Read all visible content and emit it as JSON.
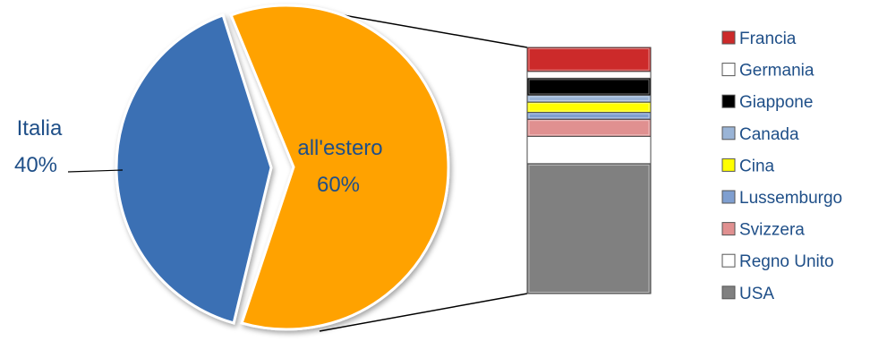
{
  "chart_data": [
    {
      "type": "pie",
      "slices": [
        {
          "label": "Italia",
          "value": 40,
          "value_label": "40%",
          "color": "#3a6fb4"
        },
        {
          "label": "all'estero",
          "value": 60,
          "value_label": "60%",
          "color": "#ffa200"
        }
      ],
      "label_colors": {
        "Italia": "#1f4f88",
        "all'estero": "#1f4f88"
      }
    },
    {
      "type": "bar",
      "stacked": true,
      "stack_order": "bottom-to-top",
      "series": [
        {
          "name": "USA",
          "value": 38,
          "color": "#808080"
        },
        {
          "name": "Regno Unito",
          "value": 8,
          "color": "#ffffff"
        },
        {
          "name": "Svizzera",
          "value": 5,
          "color": "#e09090"
        },
        {
          "name": "Lussemburgo",
          "value": 2,
          "color": "#7f9fd0"
        },
        {
          "name": "Cina",
          "value": 3,
          "color": "#ffff00"
        },
        {
          "name": "Canada",
          "value": 2,
          "color": "#9ab4d6"
        },
        {
          "name": "Giappone",
          "value": 5,
          "color": "#000000"
        },
        {
          "name": "Germania",
          "value": 2,
          "color": "#ffffff"
        },
        {
          "name": "Francia",
          "value": 7,
          "color": "#cc2a2a"
        }
      ],
      "legend_order": [
        "Francia",
        "Germania",
        "Giappone",
        "Canada",
        "Cina",
        "Lussemburgo",
        "Svizzera",
        "Regno Unito",
        "USA"
      ],
      "legend_position": "right"
    }
  ],
  "colors": {
    "text": "#1f4f88",
    "bar_border": "#4a4a4a",
    "connector": "#000000"
  }
}
